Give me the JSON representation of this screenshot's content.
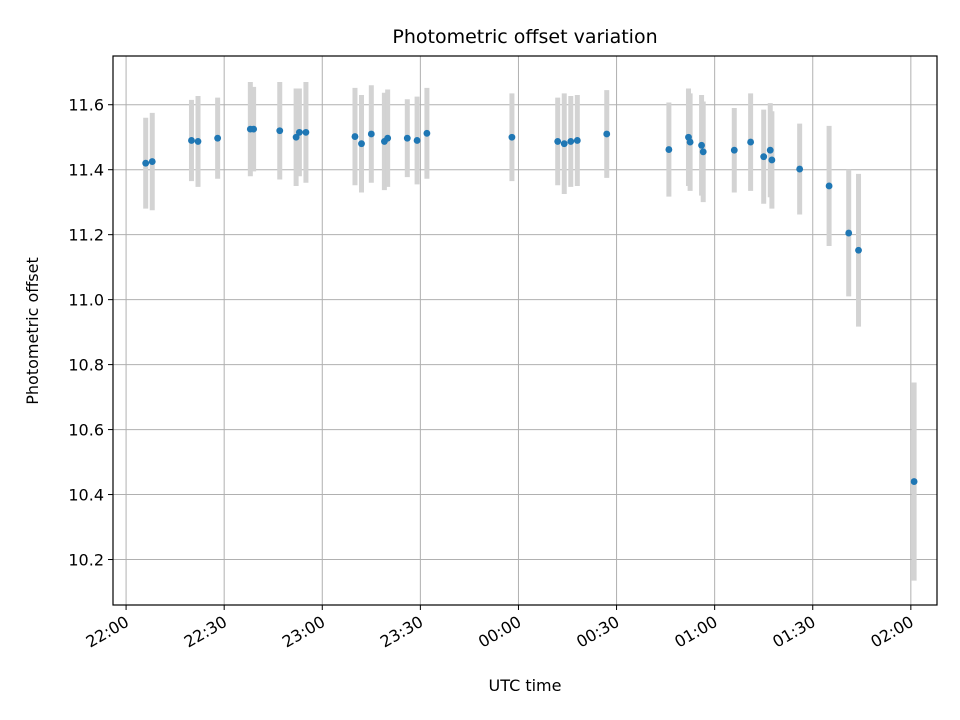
{
  "chart_data": {
    "type": "scatter",
    "title": "Photometric offset variation",
    "xlabel": "UTC time",
    "ylabel": "Photometric offset",
    "xlim": [
      "21:56",
      "02:08"
    ],
    "ylim": [
      10.06,
      11.75
    ],
    "x_ticks": [
      "22:00",
      "22:30",
      "23:00",
      "23:30",
      "00:00",
      "00:30",
      "01:00",
      "01:30",
      "02:00"
    ],
    "y_ticks": [
      "10.2",
      "10.4",
      "10.6",
      "10.8",
      "11.0",
      "11.2",
      "11.4",
      "11.6"
    ],
    "grid": true,
    "colors": {
      "point": "#1f77b4",
      "errorbar": "#d3d3d3",
      "grid": "#b0b0b0"
    },
    "series": [
      {
        "points": [
          {
            "x": "22:06",
            "y": 11.42,
            "err": 0.14
          },
          {
            "x": "22:08",
            "y": 11.425,
            "err": 0.15
          },
          {
            "x": "22:20",
            "y": 11.49,
            "err": 0.125
          },
          {
            "x": "22:22",
            "y": 11.487,
            "err": 0.14
          },
          {
            "x": "22:28",
            "y": 11.497,
            "err": 0.125
          },
          {
            "x": "22:38",
            "y": 11.525,
            "err": 0.145
          },
          {
            "x": "22:39",
            "y": 11.525,
            "err": 0.13
          },
          {
            "x": "22:47",
            "y": 11.52,
            "err": 0.15
          },
          {
            "x": "22:52",
            "y": 11.5,
            "err": 0.15
          },
          {
            "x": "22:53",
            "y": 11.515,
            "err": 0.135
          },
          {
            "x": "22:55",
            "y": 11.515,
            "err": 0.155
          },
          {
            "x": "23:10",
            "y": 11.502,
            "err": 0.15
          },
          {
            "x": "23:12",
            "y": 11.48,
            "err": 0.15
          },
          {
            "x": "23:15",
            "y": 11.51,
            "err": 0.15
          },
          {
            "x": "23:19",
            "y": 11.487,
            "err": 0.15
          },
          {
            "x": "23:20",
            "y": 11.497,
            "err": 0.15
          },
          {
            "x": "23:26",
            "y": 11.497,
            "err": 0.12
          },
          {
            "x": "23:29",
            "y": 11.49,
            "err": 0.135
          },
          {
            "x": "23:32",
            "y": 11.512,
            "err": 0.14
          },
          {
            "x": "23:58",
            "y": 11.5,
            "err": 0.135
          },
          {
            "x": "00:12",
            "y": 11.487,
            "err": 0.135
          },
          {
            "x": "00:14",
            "y": 11.48,
            "err": 0.155
          },
          {
            "x": "00:16",
            "y": 11.487,
            "err": 0.14
          },
          {
            "x": "00:18",
            "y": 11.49,
            "err": 0.14
          },
          {
            "x": "00:27",
            "y": 11.51,
            "err": 0.135
          },
          {
            "x": "00:46",
            "y": 11.462,
            "err": 0.145
          },
          {
            "x": "00:52",
            "y": 11.5,
            "err": 0.15
          },
          {
            "x": "00:52.5",
            "y": 11.485,
            "err": 0.15
          },
          {
            "x": "00:56",
            "y": 11.475,
            "err": 0.155
          },
          {
            "x": "00:56.5",
            "y": 11.455,
            "err": 0.155
          },
          {
            "x": "01:06",
            "y": 11.46,
            "err": 0.13
          },
          {
            "x": "01:11",
            "y": 11.485,
            "err": 0.15
          },
          {
            "x": "01:15",
            "y": 11.44,
            "err": 0.145
          },
          {
            "x": "01:17",
            "y": 11.46,
            "err": 0.145
          },
          {
            "x": "01:17.5",
            "y": 11.43,
            "err": 0.15
          },
          {
            "x": "01:26",
            "y": 11.402,
            "err": 0.14
          },
          {
            "x": "01:35",
            "y": 11.35,
            "err": 0.185
          },
          {
            "x": "01:41",
            "y": 11.205,
            "err": 0.195
          },
          {
            "x": "01:44",
            "y": 11.152,
            "err": 0.235
          },
          {
            "x": "02:01",
            "y": 10.44,
            "err": 0.305
          }
        ]
      }
    ]
  }
}
